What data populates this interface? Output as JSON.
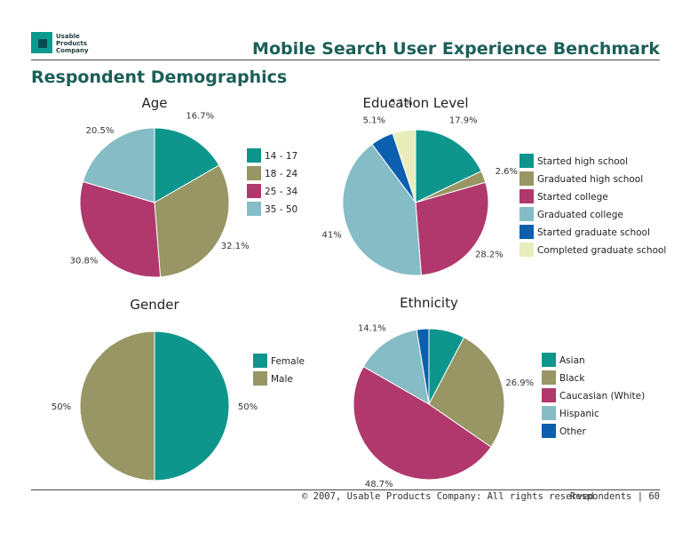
{
  "header": {
    "logo_text": "Usable Products Company",
    "title": "Mobile Search User Experience Benchmark"
  },
  "page_title": "Respondent Demographics",
  "footer": {
    "copyright": "© 2007, Usable Products Company: All rights reserved",
    "section": "Respondents  |  60"
  },
  "chart_data": [
    {
      "type": "pie",
      "title": "Age",
      "legend_position": "right",
      "slices": [
        {
          "label": "14 - 17",
          "value": 16.7,
          "value_label": "16.7%",
          "color": "#0e968c"
        },
        {
          "label": "18 - 24",
          "value": 32.1,
          "value_label": "32.1%",
          "color": "#979664"
        },
        {
          "label": "25 - 34",
          "value": 30.8,
          "value_label": "30.8%",
          "color": "#b0386c"
        },
        {
          "label": "35 - 50",
          "value": 20.5,
          "value_label": "20.5%",
          "color": "#86bcc6"
        }
      ]
    },
    {
      "type": "pie",
      "title": "Education Level",
      "legend_position": "right",
      "slices": [
        {
          "label": "Started high school",
          "value": 17.9,
          "value_label": "17.9%",
          "color": "#0e968c"
        },
        {
          "label": "Graduated high school",
          "value": 2.6,
          "value_label": "2.6%",
          "color": "#979664"
        },
        {
          "label": "Started college",
          "value": 28.2,
          "value_label": "28.2%",
          "color": "#b0386c"
        },
        {
          "label": "Graduated college",
          "value": 41,
          "value_label": "41%",
          "color": "#86bcc6"
        },
        {
          "label": "Started graduate school",
          "value": 5.1,
          "value_label": "5.1%",
          "color": "#0b5fae"
        },
        {
          "label": "Completed graduate school",
          "value": 5.1,
          "value_label": "5.1%",
          "color": "#e8edbb"
        }
      ]
    },
    {
      "type": "pie",
      "title": "Gender",
      "legend_position": "right",
      "slices": [
        {
          "label": "Female",
          "value": 50,
          "value_label": "50%",
          "color": "#0e968c"
        },
        {
          "label": "Male",
          "value": 50,
          "value_label": "50%",
          "color": "#979664"
        }
      ]
    },
    {
      "type": "pie",
      "title": "Ethnicity",
      "legend_position": "right",
      "slices": [
        {
          "label": "Asian",
          "value": 7.7,
          "value_label": "",
          "color": "#0e968c"
        },
        {
          "label": "Black",
          "value": 26.9,
          "value_label": "26.9%",
          "color": "#979664"
        },
        {
          "label": "Caucasian (White)",
          "value": 48.7,
          "value_label": "48.7%",
          "color": "#b0386c"
        },
        {
          "label": "Hispanic",
          "value": 14.1,
          "value_label": "14.1%",
          "color": "#86bcc6"
        },
        {
          "label": "Other",
          "value": 2.6,
          "value_label": "",
          "color": "#0b5fae"
        }
      ]
    }
  ]
}
